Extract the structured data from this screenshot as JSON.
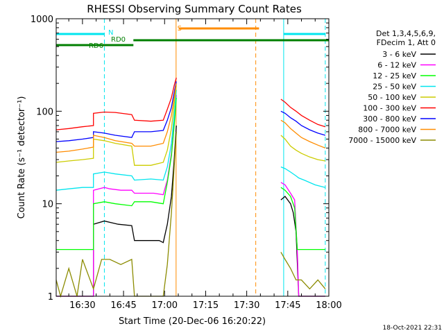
{
  "chart_data": {
    "type": "line",
    "title": "RHESSI Observing Summary Count Rates",
    "xlabel": "Start Time (20-Dec-06 16:20:22)",
    "ylabel": "Count Rate (s⁻¹ detector⁻¹)",
    "yscale": "log",
    "ylim": [
      1,
      1000
    ],
    "xlim_minutes": [
      20.4,
      120
    ],
    "x_unit": "minutes after 16:00 UT",
    "x_ticks": [
      {
        "label": "16:30",
        "x": 30
      },
      {
        "label": "16:45",
        "x": 45
      },
      {
        "label": "17:00",
        "x": 60
      },
      {
        "label": "17:15",
        "x": 75
      },
      {
        "label": "17:30",
        "x": 90
      },
      {
        "label": "17:45",
        "x": 105
      },
      {
        "label": "18:00",
        "x": 120
      }
    ],
    "y_ticks": [
      {
        "label": "1",
        "y": 1
      },
      {
        "label": "10",
        "y": 10
      },
      {
        "label": "100",
        "y": 100
      },
      {
        "label": "1000",
        "y": 1000
      }
    ],
    "timestamp": "18-Oct-2021 22:31",
    "legend_header": [
      "Det 1,3,4,5,6,9,",
      "FDecim 1, Att 0"
    ],
    "legend_placement": "right",
    "flags": [
      {
        "label": "N",
        "color": "#00e5ee",
        "segments": [
          [
            20.4,
            38.0
          ],
          [
            103.5,
            118.7
          ]
        ]
      },
      {
        "label": "S",
        "color": "#ff8c00",
        "segments": [
          [
            65.2,
            94.5
          ]
        ]
      },
      {
        "label": "RD0",
        "color": "#007f00",
        "segments": [
          [
            48.6,
            120
          ]
        ]
      },
      {
        "label": "RD6",
        "color": "#007f00",
        "segments": [
          [
            20.4,
            48.6
          ]
        ]
      }
    ],
    "vertical_lines": [
      {
        "x": 20.4,
        "color": "#00e5ee",
        "style": "solid"
      },
      {
        "x": 38.0,
        "color": "#00e5ee",
        "style": "dashed"
      },
      {
        "x": 64.2,
        "color": "#ff8c00",
        "style": "solid"
      },
      {
        "x": 93.3,
        "color": "#ff8c00",
        "style": "dashed"
      },
      {
        "x": 103.5,
        "color": "#00e5ee",
        "style": "solid"
      },
      {
        "x": 118.7,
        "color": "#00e5ee",
        "style": "dashed"
      }
    ],
    "series": [
      {
        "name": "3 - 6 keV",
        "color": "#000000",
        "points": [
          [
            20.4,
            1
          ],
          [
            34,
            1
          ],
          [
            34,
            6
          ],
          [
            38,
            6.5
          ],
          [
            43,
            6
          ],
          [
            48,
            5.8
          ],
          [
            49,
            4
          ],
          [
            55,
            4
          ],
          [
            58,
            4
          ],
          [
            59.5,
            3.8
          ],
          [
            61,
            6
          ],
          [
            62.5,
            12
          ],
          [
            63.5,
            30
          ],
          [
            64.3,
            70
          ],
          [
            64.3,
            null
          ],
          [
            102.5,
            null
          ],
          [
            102.5,
            11
          ],
          [
            104,
            12
          ],
          [
            106,
            10
          ],
          [
            107,
            8
          ],
          [
            108,
            5
          ],
          [
            109,
            1
          ],
          [
            118.7,
            1
          ]
        ]
      },
      {
        "name": "6 - 12 keV",
        "color": "#ff00ff",
        "points": [
          [
            20.4,
            1
          ],
          [
            34,
            1
          ],
          [
            34,
            14
          ],
          [
            38,
            15
          ],
          [
            40,
            14.5
          ],
          [
            44,
            14
          ],
          [
            48,
            14
          ],
          [
            49,
            13
          ],
          [
            56,
            13
          ],
          [
            59.5,
            12.5
          ],
          [
            61,
            18
          ],
          [
            62.5,
            35
          ],
          [
            63.5,
            75
          ],
          [
            64.3,
            150
          ],
          [
            64.3,
            null
          ],
          [
            102.5,
            null
          ],
          [
            102.5,
            17
          ],
          [
            104,
            16
          ],
          [
            106,
            13
          ],
          [
            107.5,
            11
          ],
          [
            108.5,
            3
          ],
          [
            109,
            1
          ],
          [
            118.7,
            1
          ]
        ]
      },
      {
        "name": "12 - 25 keV",
        "color": "#00ff00",
        "points": [
          [
            20.4,
            3.2
          ],
          [
            34,
            3.2
          ],
          [
            34,
            10
          ],
          [
            38,
            10.5
          ],
          [
            42,
            10
          ],
          [
            48,
            9.5
          ],
          [
            49,
            10.5
          ],
          [
            55,
            10.5
          ],
          [
            59.5,
            10
          ],
          [
            61,
            17
          ],
          [
            62.5,
            33
          ],
          [
            63.5,
            70
          ],
          [
            64.3,
            140
          ],
          [
            64.3,
            null
          ],
          [
            102.5,
            null
          ],
          [
            102.5,
            15
          ],
          [
            104,
            14
          ],
          [
            106,
            12
          ],
          [
            107.5,
            9
          ],
          [
            108.5,
            3.2
          ],
          [
            118.7,
            3.2
          ]
        ]
      },
      {
        "name": "25 - 50 keV",
        "color": "#00e5ee",
        "points": [
          [
            20.4,
            14
          ],
          [
            25,
            14.5
          ],
          [
            30,
            15
          ],
          [
            34,
            15
          ],
          [
            34,
            21
          ],
          [
            38,
            22
          ],
          [
            42,
            21
          ],
          [
            48,
            20
          ],
          [
            49,
            18
          ],
          [
            55,
            18.5
          ],
          [
            59.5,
            18
          ],
          [
            61,
            25
          ],
          [
            62.5,
            45
          ],
          [
            63.5,
            90
          ],
          [
            64.3,
            170
          ],
          [
            64.3,
            null
          ],
          [
            102.5,
            null
          ],
          [
            102.5,
            25
          ],
          [
            104,
            24
          ],
          [
            106,
            22
          ],
          [
            108,
            20
          ],
          [
            109,
            19
          ],
          [
            111,
            18
          ],
          [
            115,
            16
          ],
          [
            118.7,
            15
          ]
        ]
      },
      {
        "name": "50 - 100 keV",
        "color": "#cccc00",
        "points": [
          [
            20.4,
            28
          ],
          [
            25,
            29
          ],
          [
            30,
            30
          ],
          [
            34,
            31
          ],
          [
            34,
            50
          ],
          [
            38,
            48
          ],
          [
            42,
            45
          ],
          [
            48,
            42
          ],
          [
            49,
            26
          ],
          [
            55,
            26
          ],
          [
            59.5,
            28
          ],
          [
            61,
            38
          ],
          [
            62.5,
            65
          ],
          [
            63.5,
            120
          ],
          [
            64.3,
            190
          ],
          [
            64.3,
            null
          ],
          [
            102.5,
            null
          ],
          [
            102.5,
            55
          ],
          [
            104,
            50
          ],
          [
            106,
            42
          ],
          [
            108,
            38
          ],
          [
            110,
            35
          ],
          [
            113,
            32
          ],
          [
            116,
            30
          ],
          [
            118.7,
            29
          ]
        ]
      },
      {
        "name": "100 - 300 keV",
        "color": "#ff0000",
        "points": [
          [
            20.4,
            63
          ],
          [
            25,
            65
          ],
          [
            30,
            68
          ],
          [
            34,
            70
          ],
          [
            34,
            95
          ],
          [
            38,
            98
          ],
          [
            42,
            97
          ],
          [
            48,
            92
          ],
          [
            49,
            80
          ],
          [
            55,
            78
          ],
          [
            59.5,
            80
          ],
          [
            61,
            105
          ],
          [
            62.5,
            140
          ],
          [
            63.5,
            190
          ],
          [
            64.3,
            230
          ],
          [
            64.3,
            null
          ],
          [
            102.5,
            null
          ],
          [
            102.5,
            135
          ],
          [
            104,
            125
          ],
          [
            106,
            110
          ],
          [
            108,
            100
          ],
          [
            110,
            90
          ],
          [
            113,
            80
          ],
          [
            116,
            72
          ],
          [
            118.7,
            68
          ]
        ]
      },
      {
        "name": "300 - 800 keV",
        "color": "#0000ff",
        "points": [
          [
            20.4,
            47
          ],
          [
            25,
            48
          ],
          [
            30,
            50
          ],
          [
            34,
            52
          ],
          [
            34,
            60
          ],
          [
            38,
            58
          ],
          [
            42,
            55
          ],
          [
            48,
            52
          ],
          [
            49,
            60
          ],
          [
            55,
            60
          ],
          [
            59.5,
            62
          ],
          [
            61,
            80
          ],
          [
            62.5,
            110
          ],
          [
            63.5,
            160
          ],
          [
            64.3,
            210
          ],
          [
            64.3,
            null
          ],
          [
            102.5,
            null
          ],
          [
            102.5,
            100
          ],
          [
            104,
            95
          ],
          [
            106,
            85
          ],
          [
            108,
            78
          ],
          [
            110,
            70
          ],
          [
            113,
            63
          ],
          [
            116,
            58
          ],
          [
            118.7,
            55
          ]
        ]
      },
      {
        "name": "800 - 7000 keV",
        "color": "#ff8c00",
        "points": [
          [
            20.4,
            36
          ],
          [
            25,
            37
          ],
          [
            30,
            39
          ],
          [
            34,
            41
          ],
          [
            34,
            55
          ],
          [
            38,
            52
          ],
          [
            42,
            48
          ],
          [
            48,
            45
          ],
          [
            49,
            42
          ],
          [
            55,
            42
          ],
          [
            59.5,
            45
          ],
          [
            61,
            60
          ],
          [
            62.5,
            90
          ],
          [
            63.5,
            140
          ],
          [
            64.3,
            200
          ],
          [
            64.3,
            null
          ],
          [
            102.5,
            null
          ],
          [
            102.5,
            80
          ],
          [
            104,
            75
          ],
          [
            106,
            65
          ],
          [
            108,
            58
          ],
          [
            110,
            52
          ],
          [
            113,
            47
          ],
          [
            116,
            43
          ],
          [
            118.7,
            40
          ]
        ]
      },
      {
        "name": "7000 - 15000 keV",
        "color": "#8b8b00",
        "points": [
          [
            20.4,
            1.5
          ],
          [
            22,
            1
          ],
          [
            25,
            2
          ],
          [
            28,
            1
          ],
          [
            30,
            2.5
          ],
          [
            34,
            1.2
          ],
          [
            37,
            2.5
          ],
          [
            40,
            2.5
          ],
          [
            44,
            2.2
          ],
          [
            48,
            2.5
          ],
          [
            49,
            1
          ],
          [
            52,
            1
          ],
          [
            55,
            1
          ],
          [
            59.5,
            1
          ],
          [
            61,
            2.2
          ],
          [
            62.5,
            8
          ],
          [
            63.5,
            25
          ],
          [
            64.3,
            60
          ],
          [
            64.3,
            null
          ],
          [
            102.5,
            null
          ],
          [
            102.5,
            3
          ],
          [
            104,
            2.5
          ],
          [
            106,
            2
          ],
          [
            108,
            1.5
          ],
          [
            110,
            1.5
          ],
          [
            113,
            1.2
          ],
          [
            116,
            1.5
          ],
          [
            118.7,
            1.2
          ]
        ]
      }
    ]
  }
}
